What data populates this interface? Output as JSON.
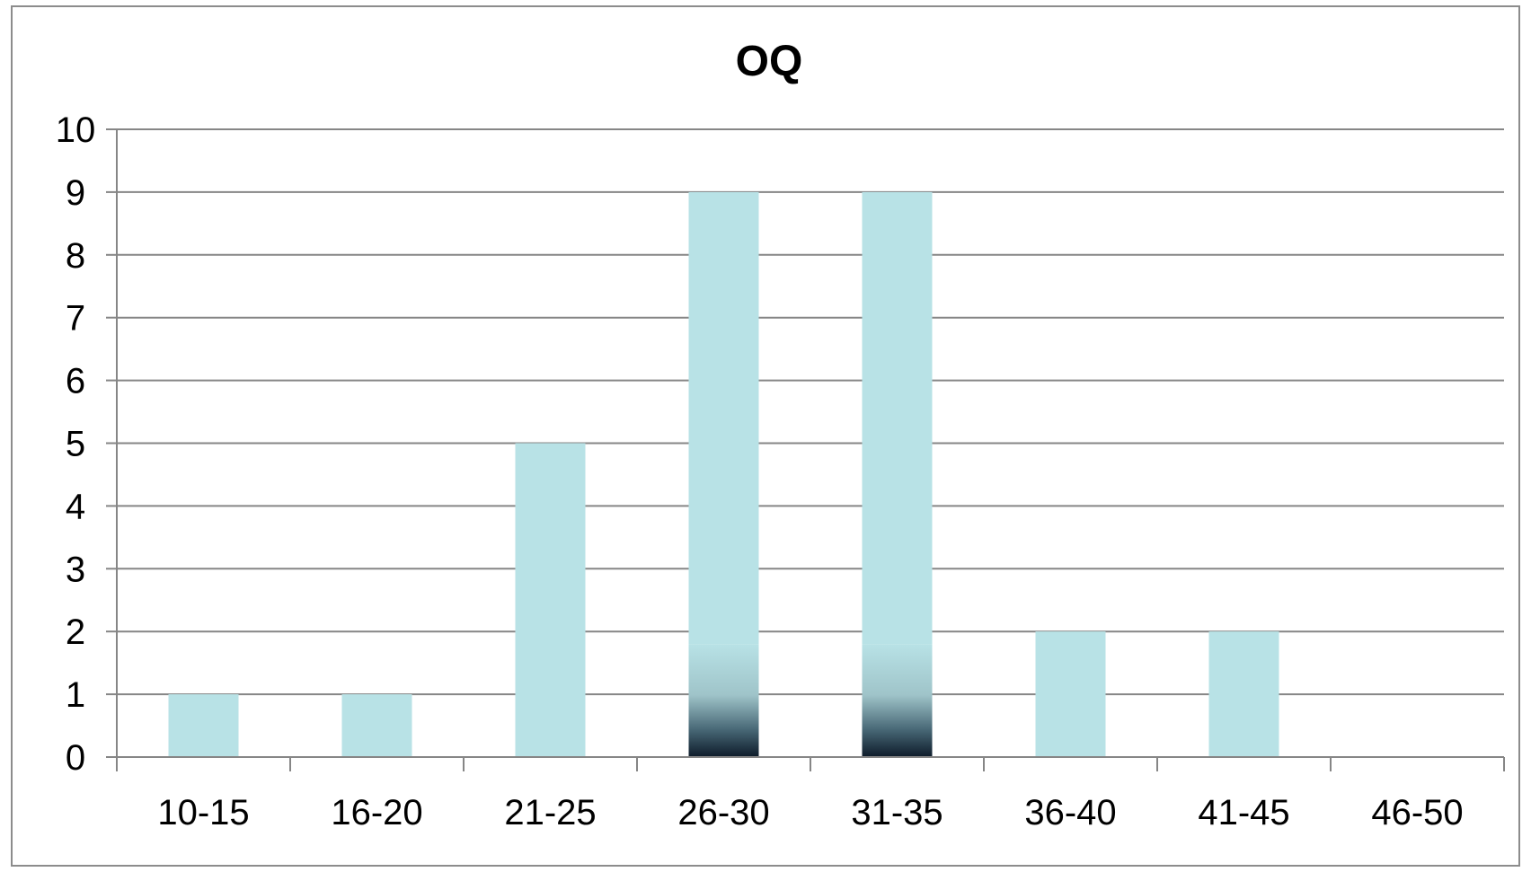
{
  "chart_data": {
    "type": "bar",
    "title": "OQ",
    "categories": [
      "10-15",
      "16-20",
      "21-25",
      "26-30",
      "31-35",
      "36-40",
      "41-45",
      "46-50"
    ],
    "values": [
      1,
      1,
      5,
      9,
      9,
      2,
      2,
      0
    ],
    "xlabel": "",
    "ylabel": "",
    "ylim": [
      0,
      10
    ],
    "yticks": [
      0,
      1,
      2,
      3,
      4,
      5,
      6,
      7,
      8,
      9,
      10
    ],
    "grid": true,
    "legend": "none",
    "colors": {
      "bar_fill": "#b8e2e6",
      "bar_gradient_dark": "#0d1b2a",
      "grid": "#868686",
      "axis": "#868686",
      "border": "#8c8c8c"
    }
  }
}
